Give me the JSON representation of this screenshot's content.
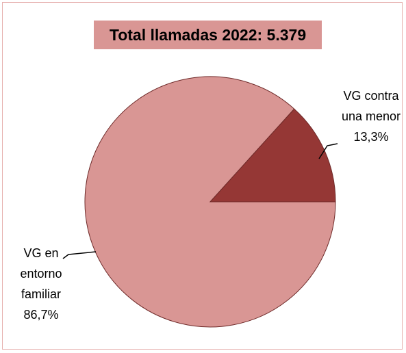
{
  "chart_data": {
    "type": "pie",
    "title": "Total llamadas 2022: 5.379",
    "categories": [
      "VG contra una menor",
      "VG en entorno familiar"
    ],
    "values": [
      13.3,
      86.7
    ],
    "value_labels": [
      "13,3%",
      "86,7%"
    ],
    "colors": [
      "#953735",
      "#d99694"
    ]
  }
}
